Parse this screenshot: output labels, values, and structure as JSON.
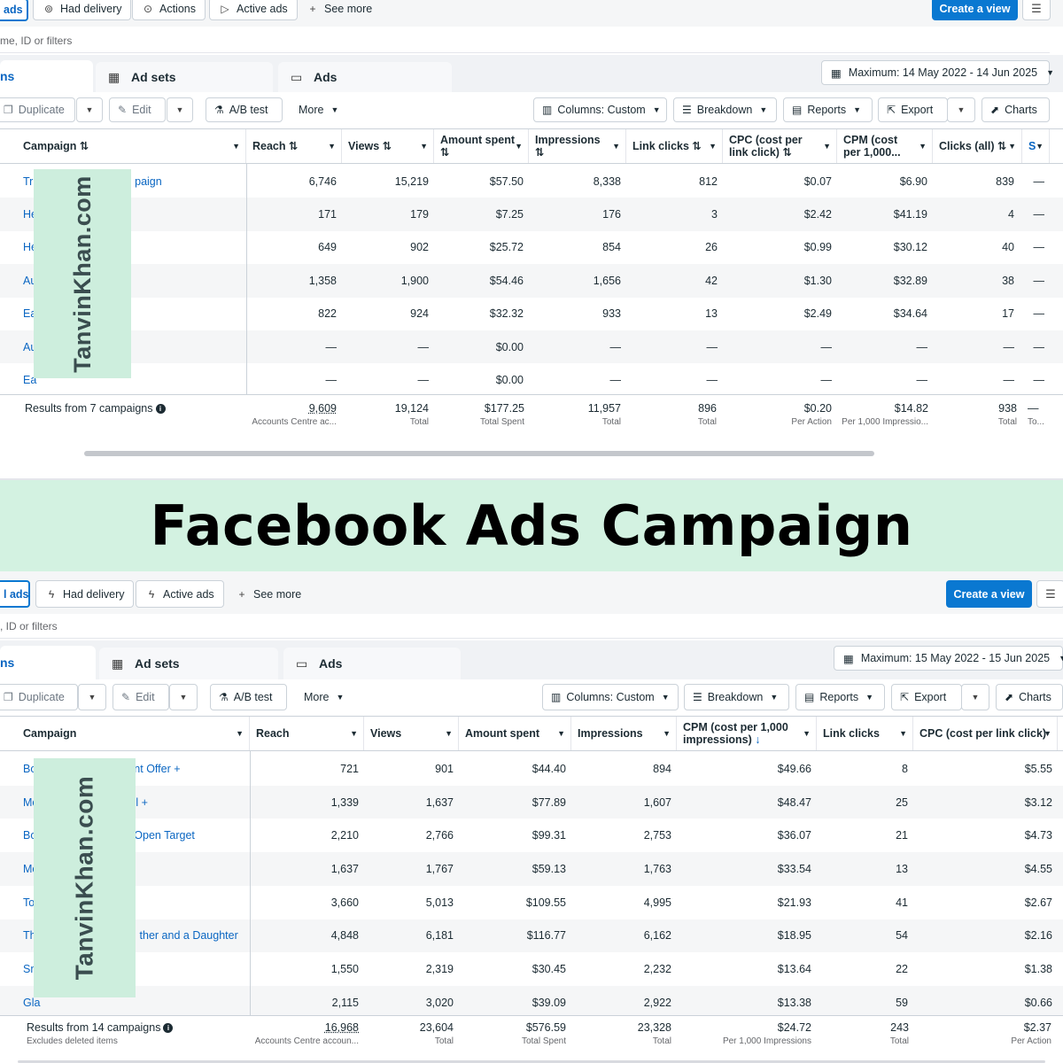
{
  "banner": {
    "title": "Facebook Ads Campaign"
  },
  "watermark": "TanvinKhan.com",
  "panel1": {
    "filters": {
      "ads": "ads",
      "had_delivery": "Had delivery",
      "actions": "Actions",
      "active_ads": "Active ads",
      "see_more": "See more"
    },
    "create_view": "Create a view",
    "search_placeholder": "me, ID or filters",
    "tabs": {
      "campaigns": "ns",
      "ad_sets": "Ad sets",
      "ads": "Ads"
    },
    "date_range": "Maximum: 14 May 2022 - 14 Jun 2025",
    "toolbar": {
      "duplicate": "Duplicate",
      "edit": "Edit",
      "ab_test": "A/B test",
      "more": "More",
      "columns": "Columns: Custom",
      "breakdown": "Breakdown",
      "reports": "Reports",
      "export": "Export",
      "charts": "Charts"
    },
    "columns": [
      "Campaign",
      "Reach",
      "Views",
      "Amount spent",
      "Impressions",
      "Link clicks",
      "CPC (cost per link click)",
      "CPM (cost per 1,000...",
      "Clicks (all)",
      "S"
    ],
    "rows": [
      {
        "name_start": "Tri",
        "name_end": "paign",
        "reach": "6,746",
        "views": "15,219",
        "spent": "$57.50",
        "impressions": "8,338",
        "link_clicks": "812",
        "cpc": "$0.07",
        "cpm": "$6.90",
        "clicks": "839",
        "extra": "—"
      },
      {
        "name_start": "He",
        "name_end": "",
        "reach": "171",
        "views": "179",
        "spent": "$7.25",
        "impressions": "176",
        "link_clicks": "3",
        "cpc": "$2.42",
        "cpm": "$41.19",
        "clicks": "4",
        "extra": "—"
      },
      {
        "name_start": "He",
        "name_end": "",
        "reach": "649",
        "views": "902",
        "spent": "$25.72",
        "impressions": "854",
        "link_clicks": "26",
        "cpc": "$0.99",
        "cpm": "$30.12",
        "clicks": "40",
        "extra": "—"
      },
      {
        "name_start": "Au",
        "name_end": "",
        "reach": "1,358",
        "views": "1,900",
        "spent": "$54.46",
        "impressions": "1,656",
        "link_clicks": "42",
        "cpc": "$1.30",
        "cpm": "$32.89",
        "clicks": "38",
        "extra": "—"
      },
      {
        "name_start": "Ea",
        "name_end": "",
        "reach": "822",
        "views": "924",
        "spent": "$32.32",
        "impressions": "933",
        "link_clicks": "13",
        "cpc": "$2.49",
        "cpm": "$34.64",
        "clicks": "17",
        "extra": "—"
      },
      {
        "name_start": "Au",
        "name_end": "",
        "reach": "—",
        "views": "—",
        "spent": "$0.00",
        "impressions": "—",
        "link_clicks": "—",
        "cpc": "—",
        "cpm": "—",
        "clicks": "—",
        "extra": "—"
      },
      {
        "name_start": "Ea",
        "name_end": "",
        "reach": "—",
        "views": "—",
        "spent": "$0.00",
        "impressions": "—",
        "link_clicks": "—",
        "cpc": "—",
        "cpm": "—",
        "clicks": "—",
        "extra": "—"
      }
    ],
    "totals": {
      "results": "Results from 7 campaigns",
      "reach": "9,609",
      "reach_sub": "Accounts Centre ac...",
      "views": "19,124",
      "views_sub": "Total",
      "spent": "$177.25",
      "spent_sub": "Total Spent",
      "impressions": "11,957",
      "impressions_sub": "Total",
      "link_clicks": "896",
      "link_clicks_sub": "Total",
      "cpc": "$0.20",
      "cpc_sub": "Per Action",
      "cpm": "$14.82",
      "cpm_sub": "Per 1,000 Impressio...",
      "clicks": "938",
      "clicks_sub": "Total",
      "extra_sub": "To..."
    }
  },
  "panel2": {
    "filters": {
      "ads": "l ads",
      "had_delivery": "Had delivery",
      "active_ads": "Active ads",
      "see_more": "See more"
    },
    "create_view": "Create a view",
    "search_placeholder": ", ID or filters",
    "tabs": {
      "campaigns": "ns",
      "ad_sets": "Ad sets",
      "ads": "Ads"
    },
    "date_range": "Maximum: 15 May 2022 - 15 Jun 2025",
    "toolbar": {
      "duplicate": "Duplicate",
      "edit": "Edit",
      "ab_test": "A/B test",
      "more": "More",
      "columns": "Columns: Custom",
      "breakdown": "Breakdown",
      "reports": "Reports",
      "export": "Export",
      "charts": "Charts"
    },
    "columns": [
      "Campaign",
      "Reach",
      "Views",
      "Amount spent",
      "Impressions",
      "CPM (cost per 1,000 impressions)",
      "Link clicks",
      "CPC (cost per link click)"
    ],
    "rows": [
      {
        "name_start": "Bo",
        "name_end": "nt Offer +",
        "reach": "721",
        "views": "901",
        "spent": "$44.40",
        "impressions": "894",
        "cpm": "$49.66",
        "link_clicks": "8",
        "cpc": "$5.55"
      },
      {
        "name_start": "Mo",
        "name_end": "l +",
        "reach": "1,339",
        "views": "1,637",
        "spent": "$77.89",
        "impressions": "1,607",
        "cpm": "$48.47",
        "link_clicks": "25",
        "cpc": "$3.12"
      },
      {
        "name_start": "Bo",
        "name_end": "Open Target",
        "reach": "2,210",
        "views": "2,766",
        "spent": "$99.31",
        "impressions": "2,753",
        "cpm": "$36.07",
        "link_clicks": "21",
        "cpc": "$4.73"
      },
      {
        "name_start": "Mo",
        "name_end": "",
        "reach": "1,637",
        "views": "1,767",
        "spent": "$59.13",
        "impressions": "1,763",
        "cpm": "$33.54",
        "link_clicks": "13",
        "cpc": "$4.55"
      },
      {
        "name_start": "To",
        "name_end": "",
        "reach": "3,660",
        "views": "5,013",
        "spent": "$109.55",
        "impressions": "4,995",
        "cpm": "$21.93",
        "link_clicks": "41",
        "cpc": "$2.67"
      },
      {
        "name_start": "The",
        "name_end": "ther and a Daughter",
        "reach": "4,848",
        "views": "6,181",
        "spent": "$116.77",
        "impressions": "6,162",
        "cpm": "$18.95",
        "link_clicks": "54",
        "cpc": "$2.16"
      },
      {
        "name_start": "Sm",
        "name_end": "",
        "reach": "1,550",
        "views": "2,319",
        "spent": "$30.45",
        "impressions": "2,232",
        "cpm": "$13.64",
        "link_clicks": "22",
        "cpc": "$1.38"
      },
      {
        "name_start": "Gla",
        "name_end": "",
        "reach": "2,115",
        "views": "3,020",
        "spent": "$39.09",
        "impressions": "2,922",
        "cpm": "$13.38",
        "link_clicks": "59",
        "cpc": "$0.66"
      }
    ],
    "totals": {
      "results": "Results from 14 campaigns",
      "results_sub": "Excludes deleted items",
      "reach": "16,968",
      "reach_sub": "Accounts Centre accoun...",
      "views": "23,604",
      "views_sub": "Total",
      "spent": "$576.59",
      "spent_sub": "Total Spent",
      "impressions": "23,328",
      "impressions_sub": "Total",
      "cpm": "$24.72",
      "cpm_sub": "Per 1,000 Impressions",
      "link_clicks": "243",
      "link_clicks_sub": "Total",
      "cpc": "$2.37",
      "cpc_sub": "Per Action"
    }
  }
}
